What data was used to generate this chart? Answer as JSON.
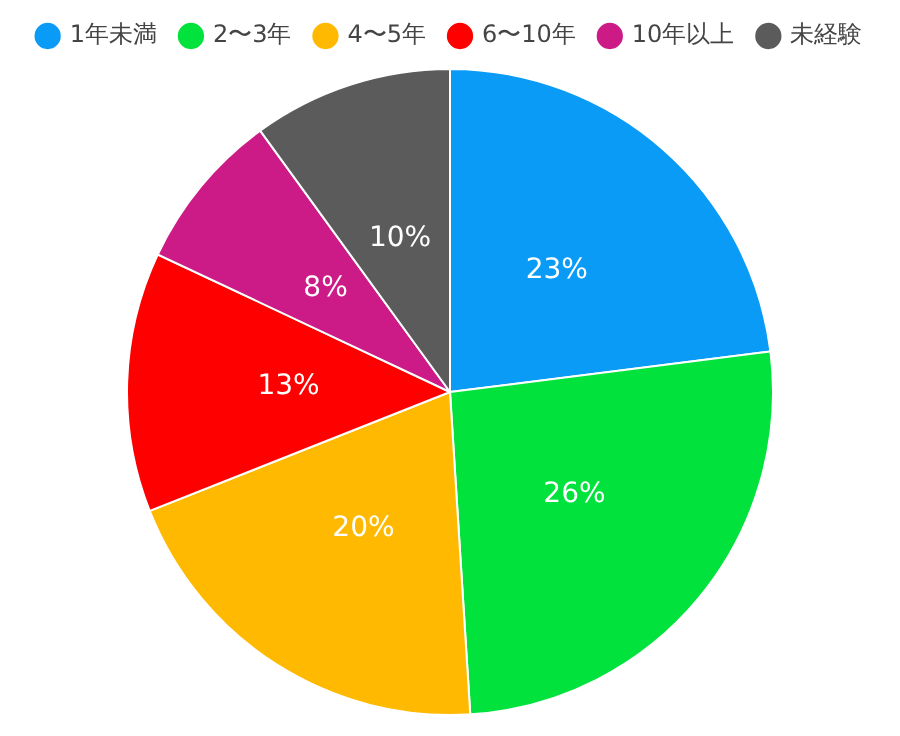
{
  "chart_data": {
    "type": "pie",
    "categories": [
      "1年未満",
      "2〜3年",
      "4〜5年",
      "6〜10年",
      "10年以上",
      "未経験"
    ],
    "values": [
      23,
      26,
      20,
      13,
      8,
      10
    ],
    "colors": [
      "#0a9bf7",
      "#02e23c",
      "#ffb900",
      "#fe0000",
      "#cc1a87",
      "#5b5b5b"
    ],
    "value_labels": [
      "23%",
      "26%",
      "20%",
      "13%",
      "8%",
      "10%"
    ],
    "legend": "top"
  }
}
